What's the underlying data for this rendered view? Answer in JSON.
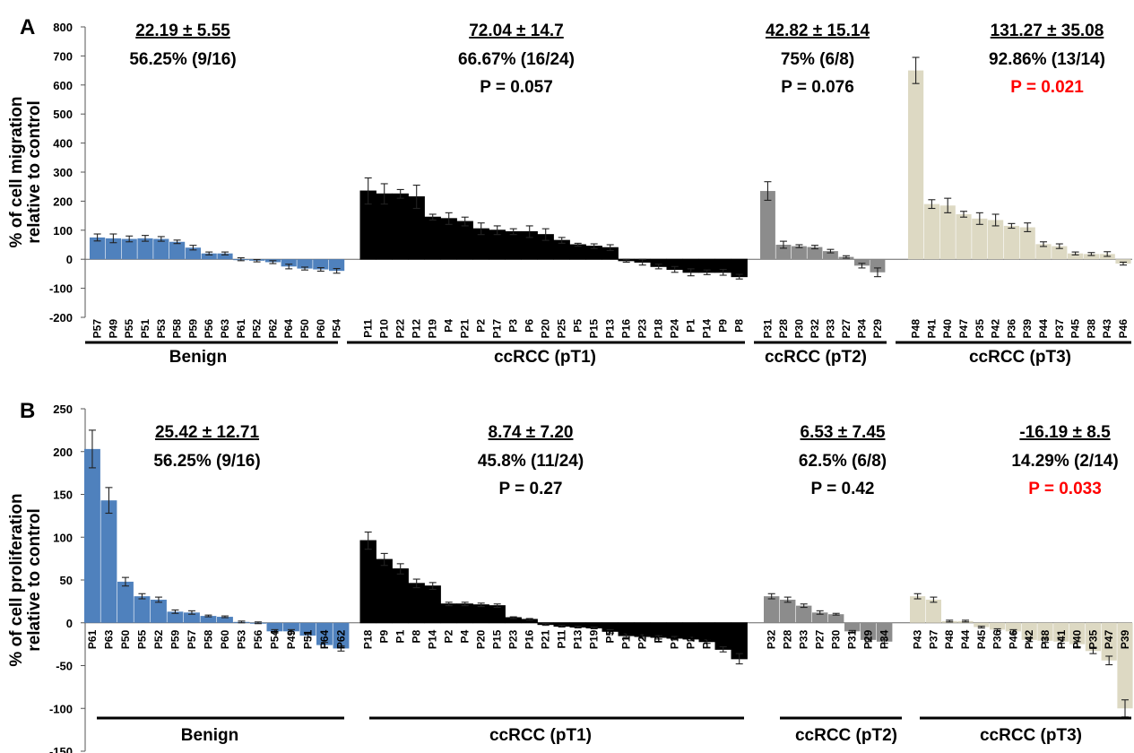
{
  "chart_data": [
    {
      "type": "bar",
      "panel_label": "A",
      "ylabel": "% of cell migration relative to control",
      "ylim": [
        -200,
        800
      ],
      "yticks": [
        "-200",
        "-100",
        "0",
        "100",
        "200",
        "300",
        "400",
        "500",
        "600",
        "700",
        "800"
      ],
      "grid": false,
      "groups": [
        {
          "name": "Benign",
          "color": "#4f81bd",
          "stat_mean": "22.19 ± 5.55",
          "stat_ratio": "56.25% (9/16)",
          "stat_p": "",
          "p_significant": false,
          "categories": [
            "P57",
            "P49",
            "P55",
            "P51",
            "P53",
            "P58",
            "P59",
            "P56",
            "P63",
            "P61",
            "P52",
            "P62",
            "P64",
            "P50",
            "P60",
            "P54"
          ],
          "values": [
            75,
            72,
            70,
            72,
            70,
            60,
            40,
            20,
            20,
            0,
            -5,
            -10,
            -25,
            -32,
            -35,
            -40
          ],
          "errors": [
            12,
            15,
            10,
            10,
            8,
            6,
            8,
            5,
            5,
            5,
            4,
            5,
            8,
            5,
            6,
            8
          ]
        },
        {
          "name": "ccRCC (pT1)",
          "color": "#000000",
          "stat_mean": "72.04 ± 14.7",
          "stat_ratio": "66.67% (16/24)",
          "stat_p": "P = 0.057",
          "p_significant": false,
          "categories": [
            "P11",
            "P10",
            "P22",
            "P12",
            "P19",
            "P4",
            "P21",
            "P2",
            "P17",
            "P3",
            "P6",
            "P20",
            "P25",
            "P5",
            "P15",
            "P13",
            "P16",
            "P23",
            "P18",
            "P24",
            "P1",
            "P14",
            "P9",
            "P8"
          ],
          "values": [
            235,
            225,
            225,
            215,
            145,
            140,
            130,
            105,
            100,
            95,
            95,
            85,
            65,
            50,
            45,
            40,
            -5,
            -10,
            -25,
            -35,
            -45,
            -45,
            -45,
            -60
          ],
          "errors": [
            45,
            35,
            15,
            40,
            10,
            20,
            15,
            20,
            15,
            10,
            20,
            20,
            10,
            5,
            8,
            10,
            5,
            10,
            8,
            10,
            12,
            8,
            10,
            8
          ]
        },
        {
          "name": "ccRCC (pT2)",
          "color": "#8c8c8c",
          "stat_mean": "42.82 ± 15.14",
          "stat_ratio": "75% (6/8)",
          "stat_p": "P = 0.076",
          "p_significant": false,
          "categories": [
            "P31",
            "P28",
            "P30",
            "P32",
            "P33",
            "P27",
            "P34",
            "P29"
          ],
          "values": [
            235,
            50,
            45,
            42,
            28,
            8,
            -22,
            -45
          ],
          "errors": [
            32,
            12,
            5,
            6,
            6,
            4,
            8,
            15
          ]
        },
        {
          "name": "ccRCC (pT3)",
          "color": "#ddd9c3",
          "stat_mean": "131.27 ± 35.08",
          "stat_ratio": "92.86% (13/14)",
          "stat_p": "P = 0.021",
          "p_significant": true,
          "categories": [
            "P48",
            "P41",
            "P40",
            "P47",
            "P35",
            "P42",
            "P36",
            "P39",
            "P44",
            "P37",
            "P45",
            "P38",
            "P43",
            "P46"
          ],
          "values": [
            650,
            190,
            185,
            155,
            140,
            135,
            115,
            110,
            52,
            45,
            20,
            18,
            18,
            -15
          ],
          "errors": [
            45,
            15,
            25,
            10,
            20,
            20,
            8,
            15,
            8,
            8,
            5,
            5,
            8,
            5
          ]
        }
      ]
    },
    {
      "type": "bar",
      "panel_label": "B",
      "ylabel": "% of cell proliferation relative to control",
      "ylim": [
        -150,
        250
      ],
      "yticks": [
        "-150",
        "-100",
        "-50",
        "0",
        "50",
        "100",
        "150",
        "200",
        "250"
      ],
      "grid": false,
      "groups": [
        {
          "name": "Benign",
          "color": "#4f81bd",
          "stat_mean": "25.42 ± 12.71",
          "stat_ratio": "56.25% (9/16)",
          "stat_p": "",
          "p_significant": false,
          "categories": [
            "P61",
            "P63",
            "P50",
            "P55",
            "P52",
            "P59",
            "P57",
            "P58",
            "P60",
            "P53",
            "P56",
            "P54",
            "P49",
            "P51",
            "P64",
            "P62"
          ],
          "values": [
            203,
            143,
            48,
            31,
            27,
            13,
            12,
            8,
            7,
            1,
            0,
            -10,
            -10,
            -15,
            -26,
            -30
          ],
          "errors": [
            22,
            15,
            5,
            3,
            3,
            2,
            2,
            1,
            1,
            1,
            1,
            2,
            2,
            2,
            3,
            3
          ]
        },
        {
          "name": "ccRCC (pT1)",
          "color": "#000000",
          "stat_mean": "8.74 ± 7.20",
          "stat_ratio": "45.8% (11/24)",
          "stat_p": "P = 0.27",
          "p_significant": false,
          "categories": [
            "P18",
            "P9",
            "P1",
            "P8",
            "P14",
            "P2",
            "P4",
            "P20",
            "P15",
            "P23",
            "P16",
            "P21",
            "P11",
            "P13",
            "P19",
            "P5",
            "P12",
            "P22",
            "P3",
            "P10",
            "P24",
            "P25",
            "P6",
            "P17"
          ],
          "values": [
            96,
            74,
            63,
            46,
            43,
            22,
            22,
            21,
            20,
            6,
            4,
            -2,
            -4,
            -5,
            -6,
            -10,
            -15,
            -16,
            -17,
            -18,
            -19,
            -22,
            -31,
            -42
          ],
          "errors": [
            10,
            7,
            6,
            5,
            4,
            2,
            2,
            2,
            2,
            1,
            1,
            1,
            1,
            1,
            1,
            2,
            2,
            2,
            2,
            2,
            2,
            2,
            3,
            6
          ]
        },
        {
          "name": "ccRCC (pT2)",
          "color": "#8c8c8c",
          "stat_mean": "6.53 ± 7.45",
          "stat_ratio": "62.5% (6/8)",
          "stat_p": "P = 0.42",
          "p_significant": false,
          "categories": [
            "P32",
            "P28",
            "P33",
            "P27",
            "P30",
            "P31",
            "P29",
            "P34"
          ],
          "values": [
            31,
            27,
            20,
            12,
            10,
            -10,
            -20,
            -22
          ],
          "errors": [
            3,
            3,
            2,
            2,
            1,
            1,
            2,
            2
          ]
        },
        {
          "name": "ccRCC (pT3)",
          "color": "#ddd9c3",
          "stat_mean": "-16.19 ± 8.5",
          "stat_ratio": "14.29% (2/14)",
          "stat_p": "P = 0.033",
          "p_significant": true,
          "categories": [
            "P43",
            "P37",
            "P48",
            "P44",
            "P45",
            "P36",
            "P46",
            "P42",
            "P38",
            "P41",
            "P40",
            "P35",
            "P47",
            "P39"
          ],
          "values": [
            31,
            27,
            2,
            2,
            -5,
            -8,
            -10,
            -20,
            -21,
            -22,
            -25,
            -33,
            -44,
            -100
          ],
          "errors": [
            3,
            3,
            1,
            1,
            1,
            1,
            2,
            2,
            2,
            2,
            3,
            3,
            5,
            10
          ]
        }
      ]
    }
  ]
}
